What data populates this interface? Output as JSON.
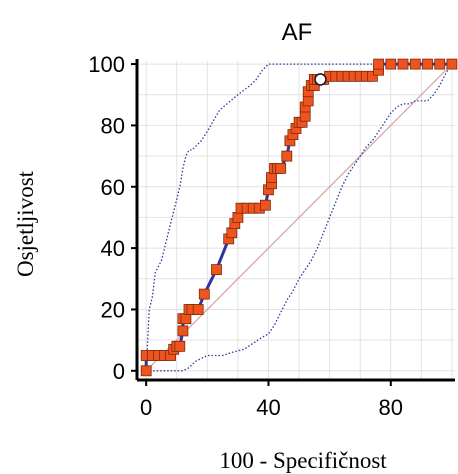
{
  "chart_data": {
    "type": "line",
    "title": "AF",
    "xlabel": "100 - Specifičnost",
    "ylabel": "Osjetljivost",
    "xlim": [
      -3,
      101
    ],
    "ylim": [
      -3,
      101
    ],
    "xticks": [
      0,
      40,
      80
    ],
    "yticks": [
      0,
      20,
      40,
      60,
      80,
      100
    ],
    "grid": true,
    "series": [
      {
        "role": "roc-curve",
        "x": [
          0,
          0,
          2,
          4,
          6,
          8,
          9,
          10,
          11,
          12,
          12,
          13,
          14,
          15,
          17,
          19,
          23,
          27,
          28,
          29,
          30,
          31,
          33,
          35,
          37,
          39,
          40,
          41,
          41,
          42,
          43,
          44,
          46,
          47,
          48,
          49,
          50,
          51,
          52,
          52,
          53,
          53,
          54,
          55,
          55,
          56,
          57,
          58,
          60,
          62,
          64,
          66,
          68,
          70,
          72,
          74,
          76,
          76,
          80,
          84,
          88,
          92,
          96,
          100
        ],
        "y": [
          0,
          5,
          5,
          5,
          5,
          5,
          7,
          8,
          8,
          13,
          17,
          17,
          20,
          20,
          20,
          25,
          33,
          43,
          45,
          48,
          50,
          53,
          53,
          53,
          53,
          54,
          59,
          61,
          63,
          66,
          66,
          66,
          70,
          75,
          77,
          79,
          81,
          81,
          83,
          86,
          88,
          91,
          93,
          93,
          95,
          95,
          95,
          95,
          96,
          96,
          96,
          96,
          96,
          96,
          96,
          96,
          98,
          100,
          100,
          100,
          100,
          100,
          100,
          100
        ],
        "color": "#3333a0"
      },
      {
        "role": "upper-confidence-bound",
        "x": [
          0,
          0.5,
          1,
          2,
          3,
          4,
          5,
          6,
          7,
          8,
          9,
          10,
          11,
          12,
          13,
          14,
          15,
          16,
          18,
          20,
          24,
          30,
          34,
          36,
          38,
          40,
          42,
          44,
          46,
          48,
          50,
          100
        ],
        "y": [
          0,
          10,
          20,
          24,
          32,
          34,
          36,
          40,
          44,
          48,
          52,
          56,
          60,
          66,
          70,
          72,
          72,
          73,
          75,
          78,
          85,
          90,
          93,
          95,
          98,
          100,
          100,
          100,
          100,
          100,
          100,
          100
        ],
        "color": "#3333a0"
      },
      {
        "role": "lower-confidence-bound",
        "x": [
          0,
          5,
          10,
          12,
          14,
          16,
          18,
          20,
          22,
          25,
          28,
          32,
          35,
          38,
          40,
          42,
          44,
          46,
          48,
          50,
          52,
          54,
          56,
          58,
          60,
          62,
          64,
          66,
          68,
          70,
          72,
          74,
          76,
          78,
          80,
          82,
          84,
          86,
          88,
          90,
          92,
          94,
          96,
          98,
          100
        ],
        "y": [
          0,
          0,
          0,
          0,
          1,
          3,
          4,
          5,
          5,
          5,
          6,
          7,
          9,
          11,
          12,
          15,
          19,
          23,
          26,
          30,
          33,
          36,
          40,
          45,
          50,
          55,
          60,
          64,
          67,
          70,
          73,
          75,
          78,
          81,
          84,
          86,
          87,
          87,
          88,
          88,
          88,
          90,
          93,
          97,
          100
        ],
        "color": "#3333a0"
      },
      {
        "role": "reference-diagonal",
        "x": [
          0,
          100
        ],
        "y": [
          0,
          100
        ],
        "color": "#d6a3a3"
      }
    ],
    "marker_color": "#f0541e",
    "marker_edge": "#7a2a0a",
    "highlight_point": {
      "x": 57,
      "y": 95
    }
  }
}
